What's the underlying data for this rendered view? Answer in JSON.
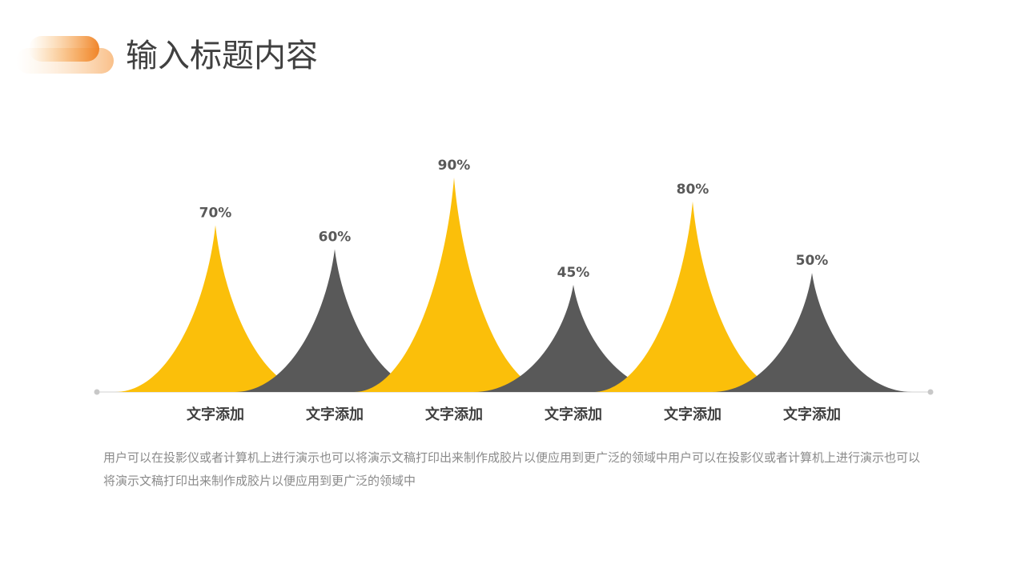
{
  "title": "输入标题内容",
  "chart_data": {
    "type": "spike",
    "categories": [
      "文字添加",
      "文字添加",
      "文字添加",
      "文字添加",
      "文字添加",
      "文字添加"
    ],
    "values": [
      70,
      60,
      90,
      45,
      80,
      50
    ],
    "value_labels": [
      "70%",
      "60%",
      "90%",
      "45%",
      "80%",
      "50%"
    ],
    "colors": [
      "#fbbf0a",
      "#595959",
      "#fbbf0a",
      "#595959",
      "#fbbf0a",
      "#595959"
    ]
  },
  "description": "用户可以在投影仪或者计算机上进行演示也可以将演示文稿打印出来制作成胶片以便应用到更广泛的领域中用户可以在投影仪或者计算机上进行演示也可以将演示文稿打印出来制作成胶片以便应用到更广泛的领域中"
}
